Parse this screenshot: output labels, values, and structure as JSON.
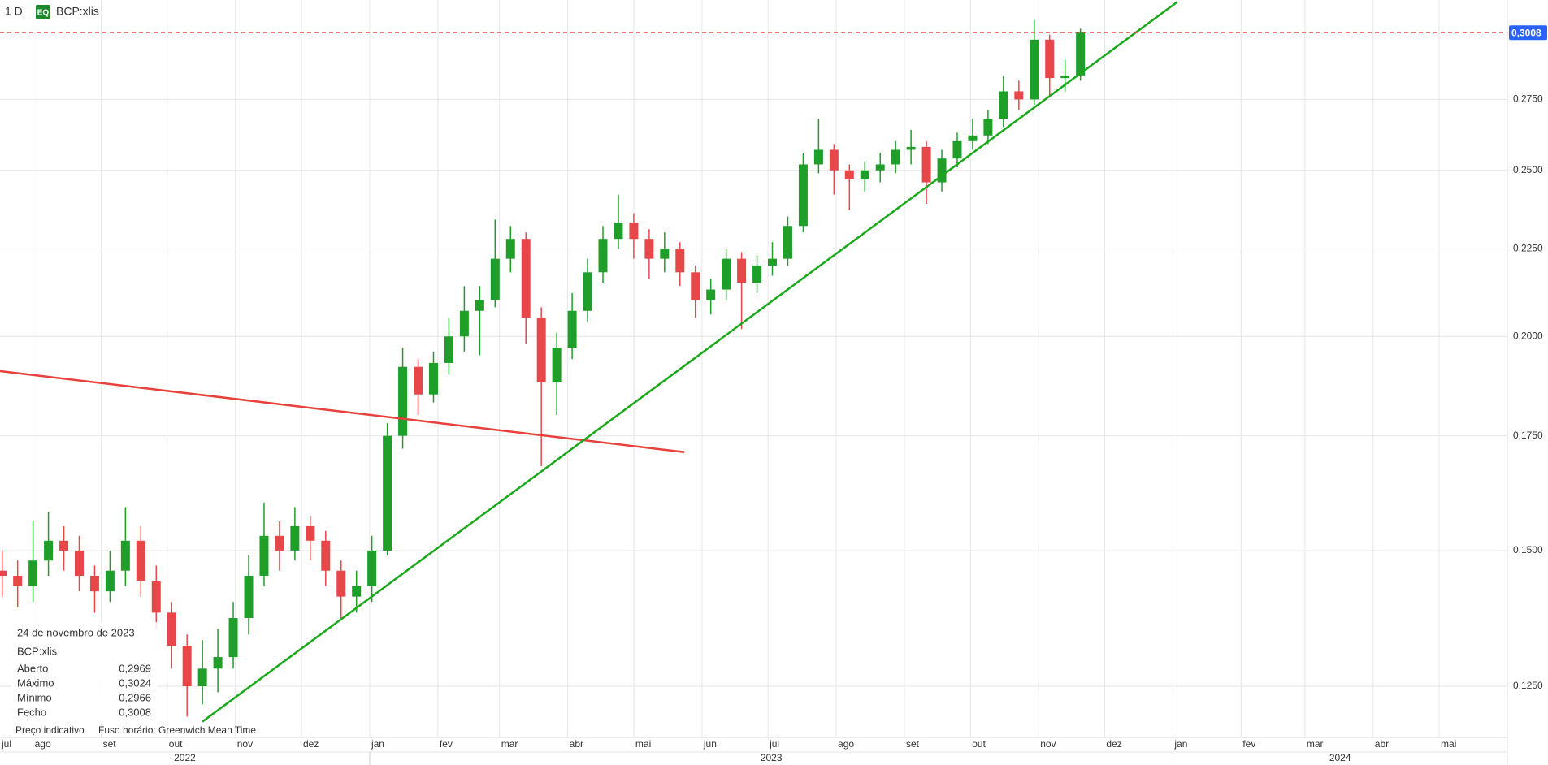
{
  "header": {
    "interval": "1 D",
    "badge": "EQ",
    "symbol": "BCP:xlis"
  },
  "info_panel": {
    "date": "24 de novembro de 2023",
    "symbol": "BCP:xlis",
    "rows": [
      [
        "Aberto",
        "0,2969"
      ],
      [
        "Máximo",
        "0,3024"
      ],
      [
        "Mínimo",
        "0,2966"
      ],
      [
        "Fecho",
        "0,3008"
      ]
    ]
  },
  "footer": {
    "note": "Preço indicativo",
    "timezone": "Fuso horário: Greenwich Mean Time"
  },
  "chart_data": {
    "type": "candlestick",
    "log_scale": true,
    "grid": true,
    "up_color": "#1f9e2a",
    "down_color": "#e8474a",
    "x": [
      "2022-07-18",
      "2022-07-25",
      "2022-08-01",
      "2022-08-08",
      "2022-08-15",
      "2022-08-22",
      "2022-08-29",
      "2022-09-05",
      "2022-09-12",
      "2022-09-19",
      "2022-09-26",
      "2022-10-03",
      "2022-10-10",
      "2022-10-17",
      "2022-10-24",
      "2022-10-31",
      "2022-11-07",
      "2022-11-14",
      "2022-11-21",
      "2022-11-28",
      "2022-12-05",
      "2022-12-12",
      "2022-12-19",
      "2022-12-26",
      "2023-01-02",
      "2023-01-09",
      "2023-01-16",
      "2023-01-23",
      "2023-01-30",
      "2023-02-06",
      "2023-02-13",
      "2023-02-20",
      "2023-02-27",
      "2023-03-06",
      "2023-03-13",
      "2023-03-20",
      "2023-03-27",
      "2023-04-03",
      "2023-04-10",
      "2023-04-17",
      "2023-04-24",
      "2023-05-01",
      "2023-05-08",
      "2023-05-15",
      "2023-05-22",
      "2023-05-29",
      "2023-06-05",
      "2023-06-12",
      "2023-06-19",
      "2023-06-26",
      "2023-07-03",
      "2023-07-10",
      "2023-07-17",
      "2023-07-24",
      "2023-07-31",
      "2023-08-07",
      "2023-08-14",
      "2023-08-21",
      "2023-08-28",
      "2023-09-04",
      "2023-09-11",
      "2023-09-18",
      "2023-09-25",
      "2023-10-02",
      "2023-10-09",
      "2023-10-16",
      "2023-10-23",
      "2023-10-30",
      "2023-11-06",
      "2023-11-13",
      "2023-11-20"
    ],
    "open": [
      0.146,
      0.145,
      0.143,
      0.148,
      0.152,
      0.15,
      0.145,
      0.142,
      0.146,
      0.152,
      0.144,
      0.138,
      0.132,
      0.125,
      0.128,
      0.13,
      0.137,
      0.145,
      0.153,
      0.15,
      0.155,
      0.152,
      0.146,
      0.141,
      0.143,
      0.15,
      0.175,
      0.192,
      0.185,
      0.193,
      0.2,
      0.207,
      0.21,
      0.222,
      0.228,
      0.205,
      0.188,
      0.197,
      0.207,
      0.218,
      0.228,
      0.233,
      0.228,
      0.222,
      0.225,
      0.218,
      0.21,
      0.213,
      0.222,
      0.215,
      0.22,
      0.222,
      0.232,
      0.252,
      0.257,
      0.25,
      0.247,
      0.25,
      0.252,
      0.257,
      0.258,
      0.246,
      0.254,
      0.26,
      0.262,
      0.268,
      0.278,
      0.275,
      0.298,
      0.283,
      0.284
    ],
    "high": [
      0.15,
      0.148,
      0.156,
      0.158,
      0.155,
      0.153,
      0.147,
      0.15,
      0.159,
      0.155,
      0.147,
      0.14,
      0.134,
      0.133,
      0.135,
      0.14,
      0.149,
      0.16,
      0.156,
      0.159,
      0.157,
      0.154,
      0.148,
      0.146,
      0.153,
      0.178,
      0.197,
      0.194,
      0.196,
      0.205,
      0.214,
      0.214,
      0.234,
      0.232,
      0.23,
      0.208,
      0.201,
      0.212,
      0.222,
      0.232,
      0.242,
      0.236,
      0.231,
      0.23,
      0.227,
      0.22,
      0.216,
      0.225,
      0.224,
      0.223,
      0.227,
      0.235,
      0.256,
      0.268,
      0.259,
      0.252,
      0.253,
      0.256,
      0.26,
      0.264,
      0.26,
      0.257,
      0.263,
      0.268,
      0.271,
      0.284,
      0.282,
      0.306,
      0.3,
      0.29,
      0.3024
    ],
    "low": [
      0.141,
      0.139,
      0.14,
      0.145,
      0.146,
      0.142,
      0.138,
      0.14,
      0.143,
      0.141,
      0.135,
      0.128,
      0.12,
      0.122,
      0.124,
      0.128,
      0.134,
      0.143,
      0.146,
      0.148,
      0.148,
      0.143,
      0.137,
      0.138,
      0.14,
      0.149,
      0.172,
      0.18,
      0.183,
      0.19,
      0.196,
      0.195,
      0.208,
      0.218,
      0.198,
      0.168,
      0.18,
      0.194,
      0.204,
      0.215,
      0.225,
      0.222,
      0.216,
      0.218,
      0.214,
      0.205,
      0.206,
      0.21,
      0.202,
      0.212,
      0.217,
      0.22,
      0.23,
      0.249,
      0.242,
      0.237,
      0.243,
      0.246,
      0.249,
      0.252,
      0.239,
      0.243,
      0.251,
      0.257,
      0.259,
      0.265,
      0.271,
      0.273,
      0.276,
      0.278,
      0.282
    ],
    "close": [
      0.145,
      0.143,
      0.148,
      0.152,
      0.15,
      0.145,
      0.142,
      0.146,
      0.152,
      0.144,
      0.138,
      0.132,
      0.125,
      0.128,
      0.13,
      0.137,
      0.145,
      0.153,
      0.15,
      0.155,
      0.152,
      0.146,
      0.141,
      0.143,
      0.15,
      0.175,
      0.192,
      0.185,
      0.193,
      0.2,
      0.207,
      0.21,
      0.222,
      0.228,
      0.205,
      0.188,
      0.197,
      0.207,
      0.218,
      0.228,
      0.233,
      0.228,
      0.222,
      0.225,
      0.218,
      0.21,
      0.213,
      0.222,
      0.215,
      0.22,
      0.222,
      0.232,
      0.252,
      0.257,
      0.25,
      0.247,
      0.25,
      0.252,
      0.257,
      0.258,
      0.246,
      0.254,
      0.26,
      0.262,
      0.268,
      0.278,
      0.275,
      0.298,
      0.283,
      0.284,
      0.3008
    ],
    "xlim": [
      "2022-07-17",
      "2024-06-01"
    ],
    "ylim": [
      0.1167,
      0.3143
    ],
    "yticks": [
      {
        "value": 0.125,
        "label": "0,1250"
      },
      {
        "value": 0.15,
        "label": "0,1500"
      },
      {
        "value": 0.175,
        "label": "0,1750"
      },
      {
        "value": 0.2,
        "label": "0,2000"
      },
      {
        "value": 0.225,
        "label": "0,2250"
      },
      {
        "value": 0.25,
        "label": "0,2500"
      },
      {
        "value": 0.275,
        "label": "0,2750"
      }
    ],
    "xticks": [
      {
        "value": "2022-07-01",
        "label": "jul"
      },
      {
        "value": "2022-08-01",
        "label": "ago"
      },
      {
        "value": "2022-09-01",
        "label": "set"
      },
      {
        "value": "2022-10-01",
        "label": "out"
      },
      {
        "value": "2022-11-01",
        "label": "nov"
      },
      {
        "value": "2022-12-01",
        "label": "dez"
      },
      {
        "value": "2023-01-01",
        "label": "jan"
      },
      {
        "value": "2023-02-01",
        "label": "fev"
      },
      {
        "value": "2023-03-01",
        "label": "mar"
      },
      {
        "value": "2023-04-01",
        "label": "abr"
      },
      {
        "value": "2023-05-01",
        "label": "mai"
      },
      {
        "value": "2023-06-01",
        "label": "jun"
      },
      {
        "value": "2023-07-01",
        "label": "jul"
      },
      {
        "value": "2023-08-01",
        "label": "ago"
      },
      {
        "value": "2023-09-01",
        "label": "set"
      },
      {
        "value": "2023-10-01",
        "label": "out"
      },
      {
        "value": "2023-11-01",
        "label": "nov"
      },
      {
        "value": "2023-12-01",
        "label": "dez"
      },
      {
        "value": "2024-01-01",
        "label": "jan"
      },
      {
        "value": "2024-02-01",
        "label": "fev"
      },
      {
        "value": "2024-03-01",
        "label": "mar"
      },
      {
        "value": "2024-04-01",
        "label": "abr"
      },
      {
        "value": "2024-05-01",
        "label": "mai"
      }
    ],
    "year_ticks": [
      {
        "value": "2022-01-01",
        "label": "2022"
      },
      {
        "value": "2023-01-01",
        "label": "2023"
      },
      {
        "value": "2024-01-01",
        "label": "2024"
      }
    ],
    "last_price": {
      "value": 0.3008,
      "label": "0,3008",
      "color": "#e8474a",
      "box_color": "#2962ff"
    },
    "trendlines": [
      {
        "color": "#e8403a",
        "start": [
          "2022-07-17",
          0.1909
        ],
        "end": [
          "2023-05-24",
          0.1712
        ]
      },
      {
        "color": "#1aa81a",
        "start": [
          "2022-10-17",
          0.1192
        ],
        "end": [
          "2024-01-03",
          0.3135
        ]
      }
    ]
  }
}
